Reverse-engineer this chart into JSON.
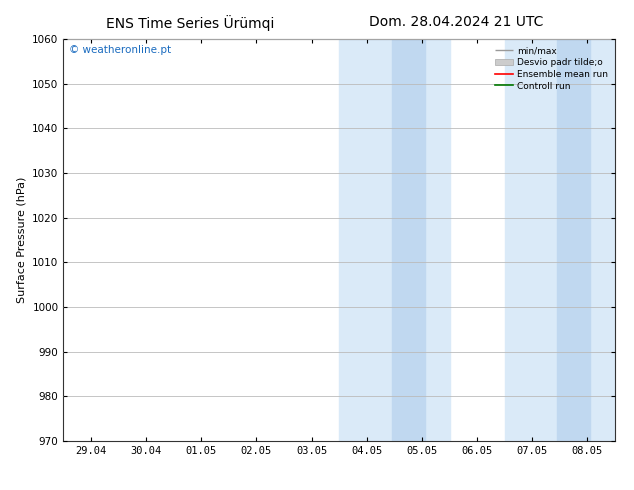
{
  "title_left": "ENS Time Series Ürümqi",
  "title_right": "Dom. 28.04.2024 21 UTC",
  "ylabel": "Surface Pressure (hPa)",
  "ylim": [
    970,
    1060
  ],
  "yticks": [
    970,
    980,
    990,
    1000,
    1010,
    1020,
    1030,
    1040,
    1050,
    1060
  ],
  "xtick_labels": [
    "29.04",
    "30.04",
    "01.05",
    "02.05",
    "03.05",
    "04.05",
    "05.05",
    "06.05",
    "07.05",
    "08.05"
  ],
  "xtick_positions": [
    0,
    1,
    2,
    3,
    4,
    5,
    6,
    7,
    8,
    9
  ],
  "xlim": [
    -0.5,
    9.5
  ],
  "shaded_outer": [
    {
      "x_start": 4.5,
      "x_end": 6.5,
      "color": "#daeaf8"
    },
    {
      "x_start": 7.5,
      "x_end": 9.5,
      "color": "#daeaf8"
    }
  ],
  "shaded_inner": [
    {
      "x_start": 5.45,
      "x_end": 6.05,
      "color": "#c0d8f0"
    },
    {
      "x_start": 8.45,
      "x_end": 9.05,
      "color": "#c0d8f0"
    }
  ],
  "background_color": "#ffffff",
  "watermark_text": "© weatheronline.pt",
  "watermark_color": "#1a6bbf",
  "legend_labels": [
    "min/max",
    "Desvio padr tilde;o",
    "Ensemble mean run",
    "Controll run"
  ],
  "legend_colors": [
    "#aaaaaa",
    "#cccccc",
    "#ff0000",
    "#007700"
  ],
  "grid_color": "#bbbbbb",
  "spine_color": "#333333",
  "title_fontsize": 10,
  "label_fontsize": 8,
  "tick_fontsize": 7.5
}
